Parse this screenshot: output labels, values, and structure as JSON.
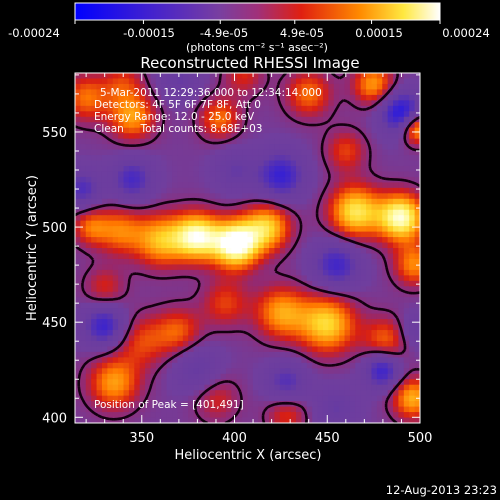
{
  "colorbar": {
    "tick_labels": [
      "-0.00024",
      "-0.00015",
      "-4.9e-05",
      "4.9e-05",
      "0.00015",
      "0.00024"
    ],
    "tick_values": [
      -0.00024,
      -0.00015,
      -4.9e-05,
      4.9e-05,
      0.00015,
      0.00024
    ],
    "range": [
      -0.00024,
      0.00024
    ],
    "unit_label": "(photons cm⁻² s⁻¹ asec⁻²)",
    "colors": [
      "#0000ff",
      "#7e3fa6",
      "#a04080",
      "#d82010",
      "#ff8000",
      "#ffff60",
      "#ffffff"
    ]
  },
  "chart_data": {
    "type": "heatmap",
    "title": "Reconstructed RHESSI Image",
    "xlabel": "Heliocentric X (arcsec)",
    "ylabel": "Heliocentric Y (arcsec)",
    "xlim": [
      314,
      500
    ],
    "ylim": [
      397,
      581
    ],
    "x_ticks": [
      350,
      400,
      450,
      500
    ],
    "y_ticks": [
      400,
      450,
      500,
      550
    ],
    "x_tick_labels": [
      "350",
      "400",
      "450",
      "500"
    ],
    "y_tick_labels": [
      "400",
      "450",
      "500",
      "550"
    ],
    "peak": [
      401,
      491
    ],
    "annotations": [
      "5-Mar-2011 12:29:36.000 to 12:34:14.000",
      "Detectors: 4F 5F 6F 7F 8F, Att 0",
      "Energy Range: 12.0 - 25.0 keV",
      "Clean     Total counts: 8.68E+03",
      "Position of Peak = [401,491]"
    ],
    "blobs": [
      {
        "x": 401,
        "y": 491,
        "v": 1.0,
        "s": 9
      },
      {
        "x": 380,
        "y": 495,
        "v": 0.85,
        "s": 9
      },
      {
        "x": 360,
        "y": 493,
        "v": 0.6,
        "s": 10
      },
      {
        "x": 418,
        "y": 500,
        "v": 0.65,
        "s": 9
      },
      {
        "x": 338,
        "y": 498,
        "v": 0.45,
        "s": 9
      },
      {
        "x": 322,
        "y": 500,
        "v": 0.4,
        "s": 7
      },
      {
        "x": 465,
        "y": 508,
        "v": 0.75,
        "s": 10
      },
      {
        "x": 490,
        "y": 505,
        "v": 0.9,
        "s": 9
      },
      {
        "x": 497,
        "y": 480,
        "v": 0.5,
        "s": 8
      },
      {
        "x": 482,
        "y": 440,
        "v": 0.45,
        "s": 9
      },
      {
        "x": 450,
        "y": 449,
        "v": 0.7,
        "s": 11
      },
      {
        "x": 425,
        "y": 455,
        "v": 0.55,
        "s": 10
      },
      {
        "x": 395,
        "y": 460,
        "v": 0.35,
        "s": 9
      },
      {
        "x": 370,
        "y": 445,
        "v": 0.4,
        "s": 9
      },
      {
        "x": 350,
        "y": 440,
        "v": 0.35,
        "s": 10
      },
      {
        "x": 335,
        "y": 418,
        "v": 0.55,
        "s": 10
      },
      {
        "x": 330,
        "y": 468,
        "v": 0.3,
        "s": 8
      },
      {
        "x": 390,
        "y": 410,
        "v": 0.3,
        "s": 9
      },
      {
        "x": 428,
        "y": 402,
        "v": 0.35,
        "s": 8
      },
      {
        "x": 496,
        "y": 410,
        "v": 0.6,
        "s": 8
      },
      {
        "x": 475,
        "y": 575,
        "v": 0.55,
        "s": 8
      },
      {
        "x": 440,
        "y": 570,
        "v": 0.45,
        "s": 9
      },
      {
        "x": 460,
        "y": 540,
        "v": 0.35,
        "s": 8
      },
      {
        "x": 320,
        "y": 568,
        "v": 0.45,
        "s": 9
      },
      {
        "x": 345,
        "y": 558,
        "v": 0.55,
        "s": 9
      },
      {
        "x": 392,
        "y": 557,
        "v": 0.45,
        "s": 8
      },
      {
        "x": 498,
        "y": 552,
        "v": 0.7,
        "s": 6
      },
      {
        "x": 340,
        "y": 576,
        "v": 0.3,
        "s": 8
      },
      {
        "x": 405,
        "y": 580,
        "v": 0.3,
        "s": 8
      },
      {
        "x": 345,
        "y": 525,
        "v": -0.5,
        "s": 8
      },
      {
        "x": 425,
        "y": 527,
        "v": -0.6,
        "s": 9
      },
      {
        "x": 400,
        "y": 530,
        "v": -0.3,
        "s": 8
      },
      {
        "x": 490,
        "y": 560,
        "v": -0.75,
        "s": 8
      },
      {
        "x": 455,
        "y": 480,
        "v": -0.55,
        "s": 9
      },
      {
        "x": 330,
        "y": 448,
        "v": -0.6,
        "s": 8
      },
      {
        "x": 318,
        "y": 520,
        "v": -0.45,
        "s": 7
      },
      {
        "x": 480,
        "y": 425,
        "v": -0.65,
        "s": 7
      },
      {
        "x": 380,
        "y": 425,
        "v": -0.35,
        "s": 9
      },
      {
        "x": 428,
        "y": 418,
        "v": -0.45,
        "s": 8
      },
      {
        "x": 370,
        "y": 578,
        "v": -0.3,
        "s": 8
      },
      {
        "x": 455,
        "y": 405,
        "v": -0.3,
        "s": 8
      },
      {
        "x": 498,
        "y": 445,
        "v": -0.3,
        "s": 7
      }
    ]
  },
  "footer": {
    "timestamp": "12-Aug-2013 23:23"
  }
}
